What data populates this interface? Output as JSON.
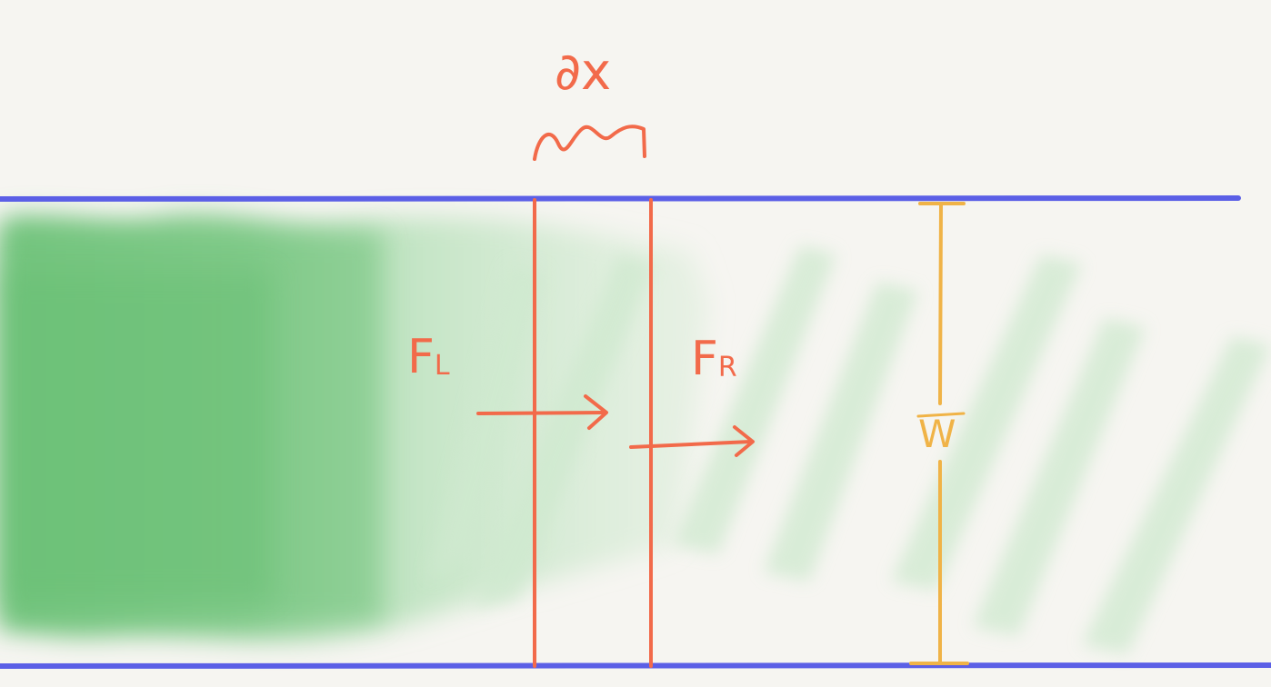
{
  "labels": {
    "dx": "∂x",
    "f_left": "F",
    "f_left_sub": "L",
    "f_right": "F",
    "f_right_sub": "R",
    "width": "W"
  },
  "colors": {
    "background": "#f6f5f1",
    "channel_wall": "#5b5fe6",
    "annotation": "#f26a4a",
    "width_marker": "#f0b347",
    "fill_dense": "#6fc37a",
    "fill_light": "#cfe9cf"
  }
}
